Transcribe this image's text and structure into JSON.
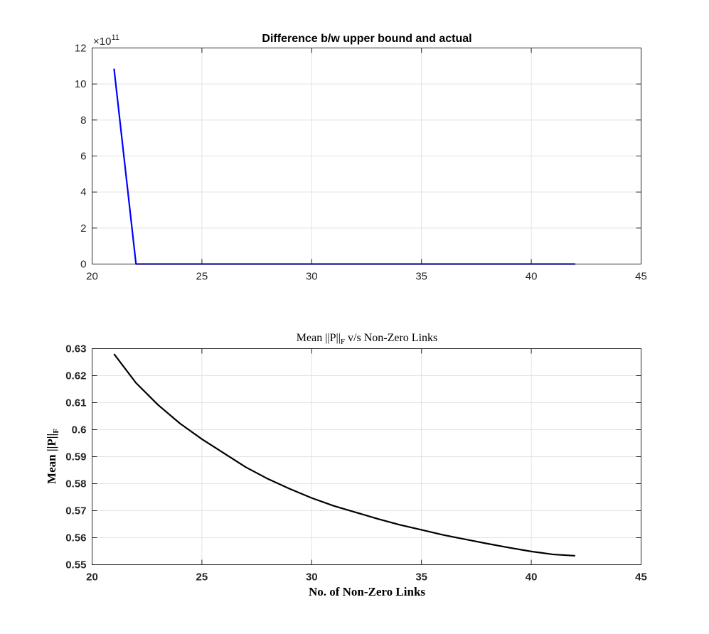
{
  "chart_data": [
    {
      "type": "line",
      "title": "Difference b/w upper bound and actual",
      "xlabel": "",
      "ylabel": "",
      "xlim": [
        20,
        45
      ],
      "ylim": [
        0,
        12
      ],
      "y_exponent_label": "×10",
      "y_exponent_power": "11",
      "xticks": [
        "20",
        "25",
        "30",
        "35",
        "40",
        "45"
      ],
      "yticks": [
        "0",
        "2",
        "4",
        "6",
        "8",
        "10",
        "12"
      ],
      "grid": true,
      "line_color": "#0000ff",
      "x": [
        21,
        22,
        23,
        24,
        25,
        26,
        27,
        28,
        29,
        30,
        31,
        32,
        33,
        34,
        35,
        36,
        37,
        38,
        39,
        40,
        41,
        42
      ],
      "series": [
        {
          "values": [
            10.85,
            0,
            0,
            0,
            0,
            0,
            0,
            0,
            0,
            0,
            0,
            0,
            0,
            0,
            0,
            0,
            0,
            0,
            0,
            0,
            0,
            0
          ]
        }
      ]
    },
    {
      "type": "line",
      "title": "Mean ||P||",
      "title_sub": "F",
      "title_rest": " v/s Non-Zero Links",
      "xlabel": "No. of Non-Zero Links",
      "ylabel": "Mean ||P||",
      "ylabel_sub": "F",
      "xlim": [
        20,
        45
      ],
      "ylim": [
        0.55,
        0.63
      ],
      "xticks": [
        "20",
        "25",
        "30",
        "35",
        "40",
        "45"
      ],
      "yticks": [
        "0.55",
        "0.56",
        "0.57",
        "0.58",
        "0.59",
        "0.6",
        "0.61",
        "0.62",
        "0.63"
      ],
      "grid": true,
      "line_color": "#000000",
      "x": [
        21,
        22,
        23,
        24,
        25,
        26,
        27,
        28,
        29,
        30,
        31,
        32,
        33,
        34,
        35,
        36,
        37,
        38,
        39,
        40,
        41,
        42
      ],
      "series": [
        {
          "values": [
            0.628,
            0.6173,
            0.6092,
            0.6023,
            0.5965,
            0.5913,
            0.5861,
            0.5818,
            0.5781,
            0.5747,
            0.5718,
            0.5694,
            0.567,
            0.5648,
            0.5629,
            0.561,
            0.5594,
            0.5578,
            0.5563,
            0.5549,
            0.5538,
            0.5533
          ]
        }
      ]
    }
  ]
}
